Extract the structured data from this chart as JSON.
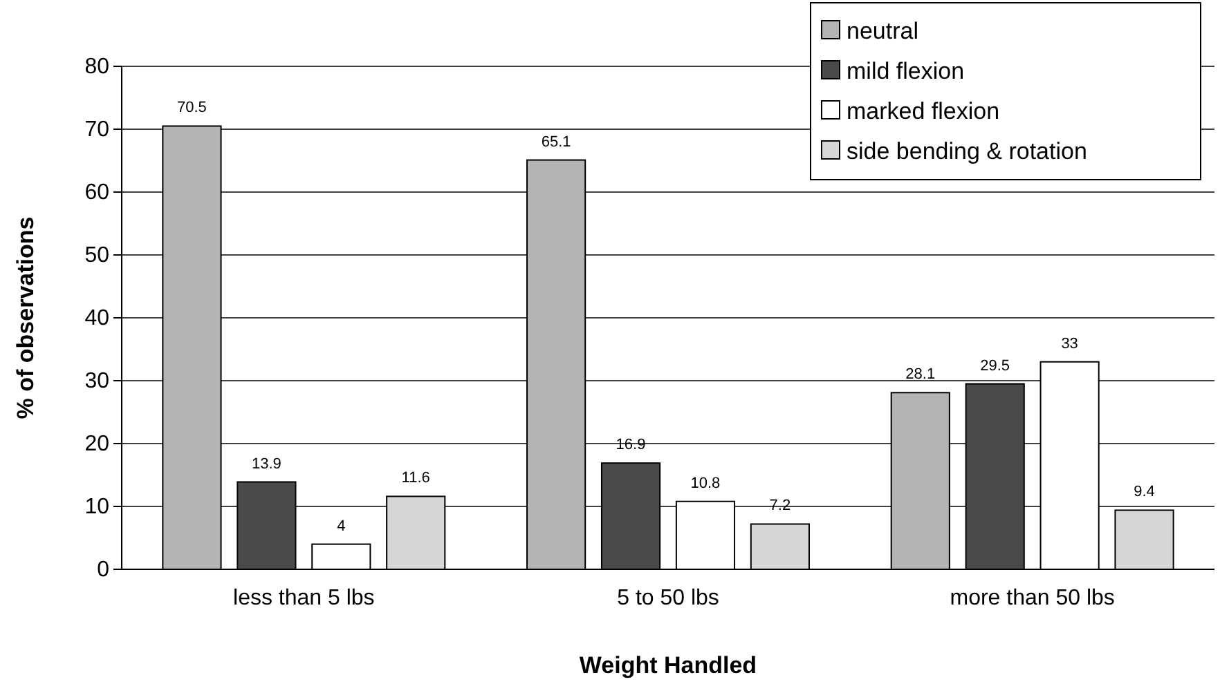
{
  "chart_data": {
    "type": "bar",
    "xlabel": "Weight Handled",
    "ylabel": "% of observations",
    "categories": [
      "less than 5 lbs",
      "5 to 50 lbs",
      "more than 50 lbs"
    ],
    "series": [
      {
        "name": "neutral",
        "color": "#b4b4b4",
        "values": [
          70.5,
          65.1,
          28.1
        ]
      },
      {
        "name": "mild flexion",
        "color": "#4a4a4a",
        "values": [
          13.9,
          16.9,
          29.5
        ]
      },
      {
        "name": "marked flexion",
        "color": "#ffffff",
        "values": [
          4,
          10.8,
          33
        ]
      },
      {
        "name": "side bending & rotation",
        "color": "#d6d6d6",
        "values": [
          11.6,
          7.2,
          9.4
        ]
      }
    ],
    "ylim": [
      0,
      80
    ],
    "yticks": [
      0,
      10,
      20,
      30,
      40,
      50,
      60,
      70,
      80
    ],
    "grid": "y",
    "legend": "top right",
    "data_labels": true
  }
}
